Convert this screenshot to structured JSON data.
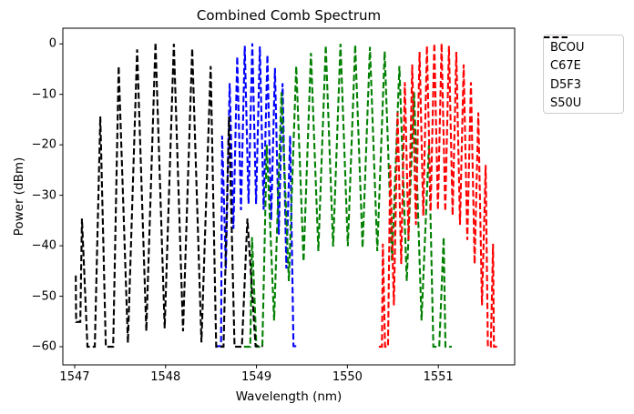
{
  "title": "Combined Comb Spectrum",
  "axes": {
    "xlabel": "Wavelength (nm)",
    "ylabel": "Power (dBm)",
    "x_tick_labels": [
      "1547",
      "1548",
      "1549",
      "1550",
      "1551"
    ],
    "y_tick_labels": [
      "0",
      "−10",
      "−20",
      "−30",
      "−40",
      "−50",
      "−60"
    ]
  },
  "legend": {
    "entries": [
      {
        "label": "BCOU",
        "color": "#0000ff"
      },
      {
        "label": "C67E",
        "color": "#008000"
      },
      {
        "label": "D5F3",
        "color": "#ff0000"
      },
      {
        "label": "S50U",
        "color": "#000000"
      }
    ]
  },
  "chart_data": {
    "type": "line",
    "title": "Combined Comb Spectrum",
    "xlabel": "Wavelength (nm)",
    "ylabel": "Power (dBm)",
    "x_tick_values": [
      1547,
      1548,
      1549,
      1550,
      1551
    ],
    "y_tick_values": [
      0,
      -10,
      -20,
      -30,
      -40,
      -50,
      -60
    ],
    "xlim": [
      1546.87,
      1551.84
    ],
    "ylim": [
      -63.6,
      3.1
    ],
    "grid": false,
    "legend_position": "outside upper right",
    "line_style": "dashed",
    "noise_floor_dbm": -60,
    "series": [
      {
        "name": "BCOU",
        "color": "#0000ff",
        "comb_spacing_nm": 0.0831,
        "valley_drop_db": 31.5,
        "teeth": [
          [
            1548.622,
            -18.2
          ],
          [
            1548.705,
            -7.8
          ],
          [
            1548.788,
            -2.5
          ],
          [
            1548.871,
            -0.4
          ],
          [
            1548.954,
            0.1
          ],
          [
            1549.037,
            -0.5
          ],
          [
            1549.12,
            -2.2
          ],
          [
            1549.203,
            -4.8
          ],
          [
            1549.287,
            -7.8
          ],
          [
            1549.37,
            -18.2
          ]
        ],
        "lead": [
          [
            1548.551,
            -59.9
          ],
          [
            1548.61,
            -59.9
          ]
        ],
        "tail": [
          [
            1549.407,
            -59.9
          ],
          [
            1549.452,
            -59.9
          ]
        ]
      },
      {
        "name": "C67E",
        "color": "#008000",
        "comb_spacing_nm": 0.1622,
        "valley_drop_db": 40.0,
        "teeth": [
          [
            1548.951,
            -38.3
          ],
          [
            1549.113,
            -20.0
          ],
          [
            1549.275,
            -9.6
          ],
          [
            1549.437,
            -4.4
          ],
          [
            1549.599,
            -1.8
          ],
          [
            1549.762,
            -0.3
          ],
          [
            1549.924,
            0.0
          ],
          [
            1550.086,
            -0.2
          ],
          [
            1550.248,
            -0.6
          ],
          [
            1550.41,
            -1.5
          ],
          [
            1550.572,
            -4.4
          ],
          [
            1550.734,
            -9.6
          ],
          [
            1550.897,
            -20.0
          ],
          [
            1551.059,
            -38.3
          ]
        ]
      },
      {
        "name": "D5F3",
        "color": "#ff0000",
        "comb_spacing_nm": 0.0808,
        "valley_drop_db": 33.0,
        "teeth": [
          [
            1550.39,
            -39.6
          ],
          [
            1550.471,
            -24.0
          ],
          [
            1550.552,
            -13.6
          ],
          [
            1550.632,
            -7.6
          ],
          [
            1550.713,
            -4.1
          ],
          [
            1550.794,
            -1.6
          ],
          [
            1550.875,
            -0.4
          ],
          [
            1550.956,
            0.1
          ],
          [
            1551.036,
            0.1
          ],
          [
            1551.117,
            -0.4
          ],
          [
            1551.198,
            -1.6
          ],
          [
            1551.279,
            -4.1
          ],
          [
            1551.359,
            -7.6
          ],
          [
            1551.44,
            -13.6
          ],
          [
            1551.521,
            -24.0
          ],
          [
            1551.602,
            -39.6
          ]
        ]
      },
      {
        "name": "S50U",
        "color": "#000000",
        "comb_spacing_nm": 0.2022,
        "valley_drop_db": 56.5,
        "teeth": [
          [
            1547.08,
            -34.6
          ],
          [
            1547.282,
            -14.4
          ],
          [
            1547.484,
            -4.4
          ],
          [
            1547.687,
            -1.1
          ],
          [
            1547.889,
            0.3
          ],
          [
            1548.091,
            0.0
          ],
          [
            1548.293,
            -0.9
          ],
          [
            1548.496,
            -4.4
          ],
          [
            1548.698,
            -14.4
          ],
          [
            1548.9,
            -34.6
          ]
        ],
        "lead": [
          [
            1547.012,
            -45.9
          ],
          [
            1547.016,
            -55.1
          ],
          [
            1547.062,
            -55.1
          ]
        ],
        "tail": [
          [
            1548.99,
            -59.9
          ],
          [
            1549.07,
            -59.9
          ]
        ]
      }
    ]
  }
}
